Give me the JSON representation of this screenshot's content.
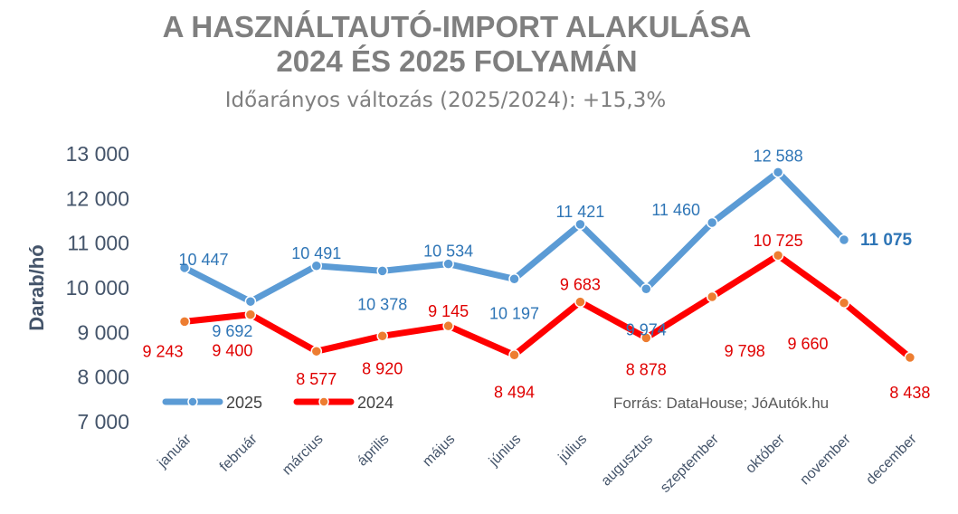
{
  "chart_data": {
    "type": "line",
    "title": "A HASZNÁLTAUTÓ-IMPORT ALAKULÁSA",
    "title_line2": "2024 ÉS 2025 FOLYAMÁN",
    "subtitle": "Időarányos változás (2025/2024): +15,3%",
    "ylabel": "Darab/hó",
    "xlabel": "",
    "ylim": [
      7000,
      13000
    ],
    "yticks": [
      "7 000",
      "8 000",
      "9 000",
      "10 000",
      "11 000",
      "12 000",
      "13 000"
    ],
    "grid": false,
    "legend": "bottom-left",
    "categories": [
      "január",
      "február",
      "március",
      "április",
      "május",
      "június",
      "július",
      "augusztus",
      "szeptember",
      "október",
      "november",
      "december"
    ],
    "series": [
      {
        "name": "2025",
        "color": "#5b9bd5",
        "marker": "#5b9bd5",
        "label_color": "#2e75b6",
        "values": [
          10447,
          9692,
          10491,
          10378,
          10534,
          10197,
          11421,
          9974,
          11460,
          12588,
          11075,
          null
        ],
        "labels": [
          "10 447",
          "9 692",
          "10 491",
          "10 378",
          "10 534",
          "10 197",
          "11 421",
          "9 974",
          "11 460",
          "12 588",
          "11 075",
          null
        ]
      },
      {
        "name": "2024",
        "color": "#ff0000",
        "marker": "#ed7d31",
        "label_color": "#e00000",
        "values": [
          9243,
          9400,
          8577,
          8920,
          9145,
          8494,
          9683,
          8878,
          9798,
          10725,
          9660,
          8438
        ],
        "labels": [
          "9 243",
          "9 400",
          "8 577",
          "8 920",
          "9 145",
          "8 494",
          "9 683",
          "8 878",
          "9 798",
          "10 725",
          "9 660",
          "8 438"
        ]
      }
    ],
    "source": "Forrás: DataHouse; JóAutók.hu"
  }
}
